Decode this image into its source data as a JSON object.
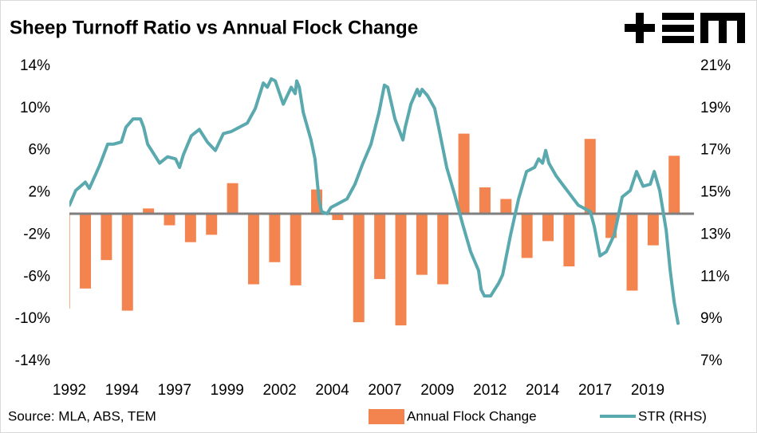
{
  "chart_data": {
    "type": "combo",
    "title": "Sheep Turnoff Ratio vs Annual Flock Change",
    "source": "Source: MLA, ABS, TEM",
    "xlim": [
      1992,
      2021.7
    ],
    "xticks": [
      1992,
      {
        "value": 1994.5,
        "label": "1994"
      },
      1997,
      {
        "value": 1999.5,
        "label": "1999"
      },
      2002,
      {
        "value": 2004.5,
        "label": "2004"
      },
      2007,
      {
        "value": 2009.5,
        "label": "2009"
      },
      2012,
      {
        "value": 2014.5,
        "label": "2014"
      },
      2017,
      {
        "value": 2019.5,
        "label": "2019"
      }
    ],
    "ylim": [
      -14,
      14
    ],
    "yticks": [
      {
        "value": 14,
        "label": "14%"
      },
      {
        "value": 10,
        "label": "10%"
      },
      {
        "value": 6,
        "label": "6%"
      },
      {
        "value": 2,
        "label": "2%"
      },
      {
        "value": -2,
        "label": "-2%"
      },
      {
        "value": -6,
        "label": "-6%"
      },
      {
        "value": -10,
        "label": "-10%"
      },
      {
        "value": -14,
        "label": "-14%"
      }
    ],
    "y2lim": [
      7,
      21
    ],
    "y2ticks": [
      {
        "value": 21,
        "label": "21%"
      },
      {
        "value": 19,
        "label": "19%"
      },
      {
        "value": 17,
        "label": "17%"
      },
      {
        "value": 15,
        "label": "15%"
      },
      {
        "value": 13,
        "label": "13%"
      },
      {
        "value": 11,
        "label": "11%"
      },
      {
        "value": 9,
        "label": "9%"
      },
      {
        "value": 7,
        "label": "7%"
      }
    ],
    "series": [
      {
        "name": "Annual Flock Change",
        "type": "bar",
        "color": "#f4844f",
        "x": [
          1991.76,
          1992.76,
          1993.76,
          1994.76,
          1995.76,
          1996.76,
          1997.76,
          1998.76,
          1999.76,
          2000.76,
          2001.76,
          2002.76,
          2003.76,
          2004.76,
          2005.76,
          2006.76,
          2007.76,
          2008.76,
          2009.76,
          2010.76,
          2011.76,
          2012.76,
          2013.76,
          2014.76,
          2015.76,
          2016.76,
          2017.76,
          2018.76,
          2019.76,
          2020.76
        ],
        "values": [
          -9.0,
          -7.1,
          -4.4,
          -9.2,
          0.5,
          -1.1,
          -2.7,
          -2.0,
          2.9,
          -6.7,
          -4.6,
          -6.8,
          2.3,
          -0.6,
          -10.3,
          -6.2,
          -10.6,
          -5.8,
          -6.7,
          7.6,
          2.5,
          1.4,
          -4.2,
          -2.6,
          -5.0,
          7.1,
          -2.3,
          -7.3,
          -3.0,
          5.5
        ]
      },
      {
        "name": "STR (RHS)",
        "type": "line",
        "axis": "y2",
        "color": "#5aa9ae",
        "x": [
          1992.0,
          1992.3,
          1992.76,
          1992.95,
          1993.44,
          1993.82,
          1994.09,
          1994.47,
          1994.69,
          1995.03,
          1995.38,
          1995.53,
          1995.72,
          1995.91,
          1996.29,
          1996.67,
          1997.05,
          1997.24,
          1997.42,
          1997.8,
          1998.18,
          1998.56,
          1998.94,
          1999.32,
          1999.7,
          2000.08,
          2000.46,
          2000.84,
          2001.22,
          2001.41,
          2001.6,
          2001.79,
          2002.17,
          2002.36,
          2002.55,
          2002.74,
          2002.81,
          2002.93,
          2003.12,
          2003.49,
          2003.68,
          2003.87,
          2003.99,
          2004.25,
          2004.44,
          2004.82,
          2005.2,
          2005.58,
          2005.96,
          2006.34,
          2006.72,
          2006.98,
          2007.14,
          2007.48,
          2007.86,
          2007.97,
          2008.24,
          2008.54,
          2008.65,
          2008.77,
          2009.03,
          2009.37,
          2009.56,
          2009.94,
          2010.32,
          2010.7,
          2011.08,
          2011.46,
          2011.58,
          2011.73,
          2012.03,
          2012.41,
          2012.6,
          2012.98,
          2013.36,
          2013.74,
          2014.12,
          2014.31,
          2014.5,
          2014.65,
          2014.8,
          2015.14,
          2015.44,
          2015.82,
          2016.2,
          2016.58,
          2016.77,
          2016.96,
          2017.23,
          2017.53,
          2017.91,
          2018.29,
          2018.67,
          2018.97,
          2019.28,
          2019.62,
          2019.81,
          2020.07,
          2020.38,
          2020.57,
          2020.76,
          2020.94
        ],
        "values": [
          14.4,
          15.1,
          15.5,
          15.2,
          16.3,
          17.3,
          17.3,
          17.4,
          18.1,
          18.5,
          18.5,
          18.1,
          17.3,
          17.0,
          16.4,
          16.7,
          16.6,
          16.2,
          16.8,
          17.7,
          18.0,
          17.4,
          17.0,
          17.8,
          17.9,
          18.1,
          18.3,
          19.0,
          20.2,
          20.0,
          20.4,
          20.3,
          19.2,
          19.6,
          20.0,
          19.7,
          20.3,
          20.0,
          18.8,
          17.5,
          16.6,
          14.7,
          14.1,
          14.0,
          14.3,
          14.5,
          14.7,
          15.4,
          16.4,
          17.3,
          18.8,
          20.1,
          20.0,
          18.5,
          17.5,
          18.1,
          19.2,
          19.9,
          19.6,
          19.9,
          19.6,
          19.0,
          18.1,
          16.2,
          14.9,
          13.5,
          12.2,
          11.3,
          10.4,
          10.1,
          10.1,
          10.7,
          11.1,
          13.0,
          14.7,
          16.0,
          16.2,
          16.6,
          16.4,
          17.0,
          16.4,
          15.8,
          15.4,
          14.9,
          14.4,
          14.2,
          14.1,
          13.4,
          12.0,
          12.2,
          13.0,
          14.8,
          15.1,
          16.0,
          15.3,
          15.4,
          16.0,
          15.1,
          13.2,
          11.3,
          9.8,
          8.8
        ]
      }
    ]
  }
}
